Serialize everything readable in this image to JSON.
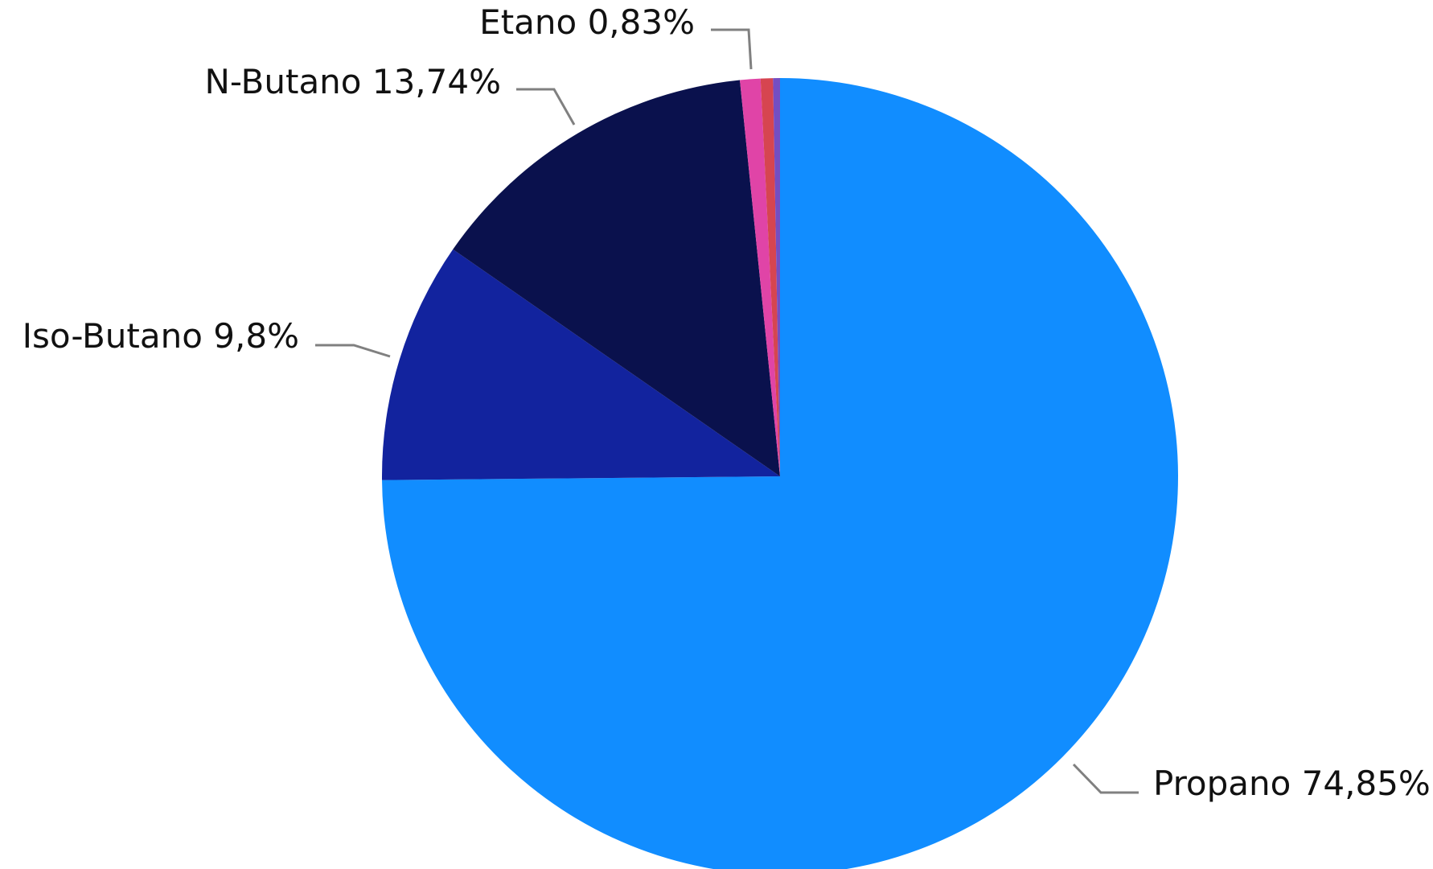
{
  "chart_data": {
    "type": "pie",
    "title": "",
    "start_angle_deg": 0,
    "direction": "clockwise",
    "series": [
      {
        "name": "",
        "slices": [
          {
            "category": "Propano",
            "value": 74.85,
            "label": "Propano 74,85%",
            "color": "#118dff",
            "labeled": true
          },
          {
            "category": "Iso-Butano",
            "value": 9.8,
            "label": "Iso-Butano 9,8%",
            "color": "#12239e",
            "labeled": true
          },
          {
            "category": "N-Butano",
            "value": 13.74,
            "label": "N-Butano 13,74%",
            "color": "#0a114d",
            "labeled": true
          },
          {
            "category": "Etano",
            "value": 0.83,
            "label": "Etano 0,83%",
            "color": "#e044a7",
            "labeled": true
          },
          {
            "category": "",
            "value": 0.5,
            "label": "",
            "color": "#d64550",
            "labeled": false
          },
          {
            "category": "",
            "value": 0.28,
            "label": "",
            "color": "#744ec2",
            "labeled": false
          }
        ]
      }
    ],
    "legend": "none",
    "data_labels": "outside with leader lines"
  }
}
